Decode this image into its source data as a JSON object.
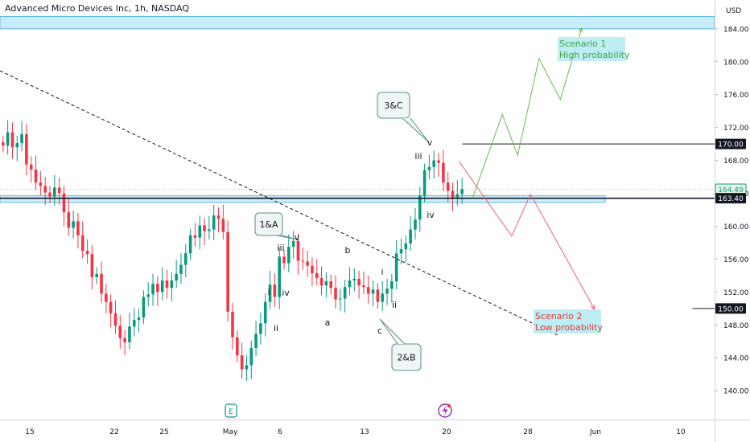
{
  "header": {
    "title": "Advanced Micro Devices Inc, 1h, NASDAQ",
    "currency": "USD"
  },
  "colors": {
    "up": "#089981",
    "down": "#f23645",
    "zone_fill": "#b3e5fc",
    "zone_stroke": "#5fb7e5",
    "bull_path": "#66bb4a",
    "bear_path": "#f06070",
    "bull_label_bg": "#b2ebf2",
    "bull_label_text": "#43a047",
    "bear_label_bg": "#b2ebf2",
    "bear_label_text": "#e53935"
  },
  "chart_data": {
    "type": "candlestick",
    "ylim": [
      136.5,
      187.5
    ],
    "y_ticks": [
      140,
      144,
      148,
      152,
      156,
      160,
      164,
      168,
      172,
      176,
      180,
      184
    ],
    "x_ticks": [
      "15",
      "22",
      "25",
      "May",
      "6",
      "13",
      "20",
      "28",
      "Jun",
      "10"
    ],
    "price_labels": [
      {
        "value": 170.0,
        "text": "170.00",
        "style": "dark"
      },
      {
        "value": 164.49,
        "text": "164.49",
        "style": "green"
      },
      {
        "value": 163.4,
        "text": "163.40",
        "style": "dark"
      },
      {
        "value": 150.0,
        "text": "150.00",
        "style": "dark"
      }
    ],
    "resistance_zone": [
      184.0,
      185.5
    ],
    "support_zone": [
      162.9,
      163.7
    ],
    "horizontal_lines": [
      {
        "value": 170.0,
        "from_day": 54.0
      },
      {
        "value": 163.4,
        "from_day": 0
      },
      {
        "value": 150.0,
        "from_day": 81.0
      }
    ],
    "trendline": {
      "from": [
        0,
        178.9
      ],
      "to": [
        65.5,
        146.7
      ]
    },
    "scenario_1": {
      "label_line1": "Scenario 1",
      "label_line2": "High probability",
      "path": [
        [
          55.2,
          163.4
        ],
        [
          58.7,
          173.6
        ],
        [
          60.5,
          168.6
        ],
        [
          63.0,
          180.4
        ],
        [
          65.5,
          175.4
        ],
        [
          68.0,
          184.1
        ]
      ]
    },
    "scenario_2": {
      "label_line1": "Scenario 2",
      "label_line2": "Low probability",
      "path": [
        [
          53.6,
          167.9
        ],
        [
          59.8,
          158.8
        ],
        [
          62.0,
          163.9
        ],
        [
          69.5,
          149.9
        ]
      ]
    },
    "callouts": [
      {
        "text": "3&C"
      },
      {
        "text": "1&A"
      },
      {
        "text": "2&B"
      }
    ],
    "wave_labels": [
      "v",
      "iii",
      "iv",
      "v",
      "iii",
      "i",
      "iv",
      "ii",
      "b",
      "a",
      "i",
      "ii",
      "c"
    ],
    "closes": [
      169.8,
      171.4,
      169.6,
      170.1,
      171.2,
      167.5,
      166.9,
      165.3,
      164.9,
      164.1,
      163.6,
      164.7,
      164.0,
      161.7,
      159.8,
      160.6,
      158.9,
      157.0,
      156.6,
      153.8,
      154.2,
      151.8,
      150.8,
      149.4,
      147.9,
      146.4,
      145.9,
      147.8,
      148.6,
      148.9,
      151.4,
      151.7,
      153.0,
      152.0,
      153.4,
      152.5,
      153.4,
      154.2,
      155.3,
      156.7,
      158.9,
      158.6,
      160.1,
      159.4,
      159.6,
      161.3,
      160.9,
      159.3,
      149.6,
      146.5,
      144.3,
      142.6,
      143.1,
      145.2,
      146.9,
      148.2,
      150.8,
      152.9,
      151.4,
      156.3,
      155.5,
      157.5,
      158.2,
      155.8,
      155.7,
      155.2,
      154.3,
      153.7,
      152.8,
      153.3,
      152.5,
      151.1,
      151.2,
      152.6,
      153.4,
      153.6,
      152.8,
      152.6,
      151.8,
      152.3,
      150.8,
      151.8,
      152.4,
      153.3,
      156.7,
      157.2,
      157.9,
      159.6,
      160.8,
      163.7,
      166.8,
      167.2,
      168.0,
      167.7,
      165.3,
      164.3,
      163.4,
      163.9,
      164.5
    ]
  }
}
